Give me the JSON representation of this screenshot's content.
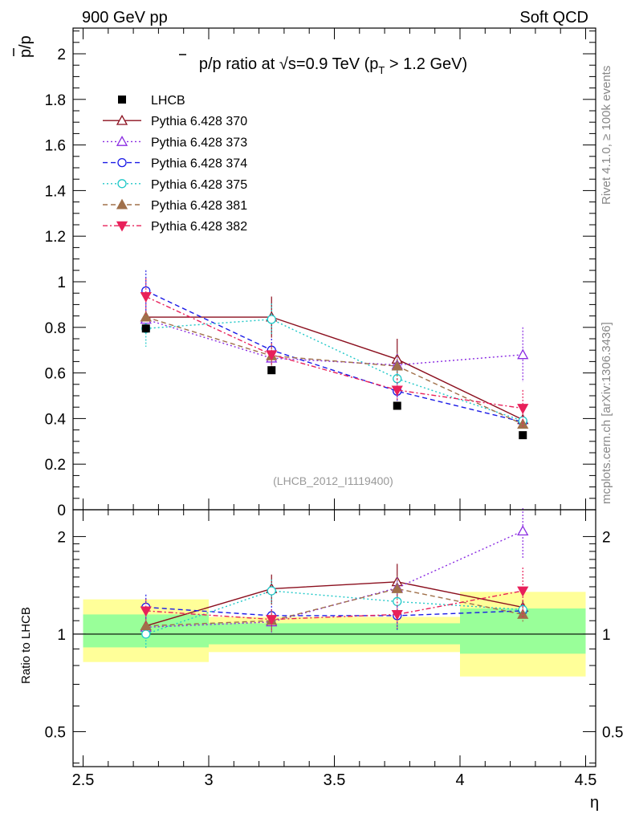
{
  "header": {
    "left": "900 GeV pp",
    "right": "Soft QCD"
  },
  "side_text": {
    "rivet": "Rivet 4.1.0, ≥ 100k events",
    "mcplots": "mcplots.cern.ch [arXiv:1306.3436]"
  },
  "chart_data": {
    "type": "scatter",
    "title_parts": {
      "pbar_p": "p/p",
      "ratio_at": " ratio at ",
      "sqrt_s": "√s",
      "energy": "=0.9 TeV (p",
      "sub_t": "T",
      "cut": " > 1.2 GeV)"
    },
    "watermark": "(LHCB_2012_I1119400)",
    "ylabel_main": "p/p",
    "ylabel_ratio": "Ratio to LHCB",
    "xlabel": "η",
    "xlim": [
      2.5,
      4.5
    ],
    "ylim_main": [
      0,
      2.12
    ],
    "ylim_ratio": [
      0.39,
      2.42
    ],
    "x_ticks": [
      "2.5",
      "3",
      "3.5",
      "4",
      "4.5"
    ],
    "y_ticks_main": [
      "0",
      "0.2",
      "0.4",
      "0.6",
      "0.8",
      "1",
      "1.2",
      "1.4",
      "1.6",
      "1.8",
      "2"
    ],
    "y_ticks_ratio": [
      "0.5",
      "1",
      "2"
    ],
    "data": {
      "name": "LHCB",
      "x": [
        2.75,
        3.25,
        3.75,
        4.25
      ],
      "y": [
        0.795,
        0.612,
        0.456,
        0.327
      ],
      "band_inner": [
        [
          0.91,
          1.15
        ],
        [
          0.93,
          1.08
        ],
        [
          0.93,
          1.08
        ],
        [
          0.87,
          1.2
        ]
      ],
      "band_outer": [
        [
          0.82,
          1.28
        ],
        [
          0.88,
          1.13
        ],
        [
          0.88,
          1.13
        ],
        [
          0.74,
          1.35
        ]
      ]
    },
    "series": [
      {
        "name": "Pythia 6.428 370",
        "color": "#8b0f1e",
        "dash": "",
        "marker": "triangle-open",
        "y": [
          0.845,
          0.845,
          0.66,
          0.395
        ],
        "err": [
          0.02,
          0.09,
          0.09,
          0.02
        ],
        "ratio": [
          1.06,
          1.38,
          1.45,
          1.21
        ]
      },
      {
        "name": "Pythia 6.428 373",
        "color": "#8a2be2",
        "dash": "2,3",
        "marker": "triangle-open",
        "y": [
          0.835,
          0.665,
          0.635,
          0.68
        ],
        "err": [
          0.02,
          0.05,
          0.05,
          0.12
        ],
        "ratio": [
          1.05,
          1.09,
          1.39,
          2.08
        ]
      },
      {
        "name": "Pythia 6.428 374",
        "color": "#1a1ae6",
        "dash": "6,4",
        "marker": "circle-open",
        "y": [
          0.96,
          0.7,
          0.52,
          0.385
        ],
        "err": [
          0.09,
          0.05,
          0.05,
          0.02
        ],
        "ratio": [
          1.21,
          1.14,
          1.14,
          1.18
        ]
      },
      {
        "name": "Pythia 6.428 375",
        "color": "#20c8c8",
        "dash": "2,3",
        "marker": "circle-open",
        "y": [
          0.795,
          0.835,
          0.575,
          0.39
        ],
        "err": [
          0.08,
          0.07,
          0.04,
          0.02
        ],
        "ratio": [
          1.0,
          1.36,
          1.26,
          1.19
        ]
      },
      {
        "name": "Pythia 6.428 381",
        "color": "#a0704a",
        "dash": "6,4",
        "marker": "triangle-filled",
        "y": [
          0.845,
          0.675,
          0.63,
          0.375
        ],
        "err": [
          0.02,
          0.05,
          0.06,
          0.02
        ],
        "ratio": [
          1.06,
          1.1,
          1.38,
          1.15
        ]
      },
      {
        "name": "Pythia 6.428 382",
        "color": "#e8205a",
        "dash": "6,3,2,3",
        "marker": "triangle-down-filled",
        "y": [
          0.935,
          0.68,
          0.525,
          0.445
        ],
        "err": [
          0.08,
          0.05,
          0.05,
          0.08
        ],
        "ratio": [
          1.18,
          1.11,
          1.15,
          1.36
        ]
      }
    ]
  }
}
